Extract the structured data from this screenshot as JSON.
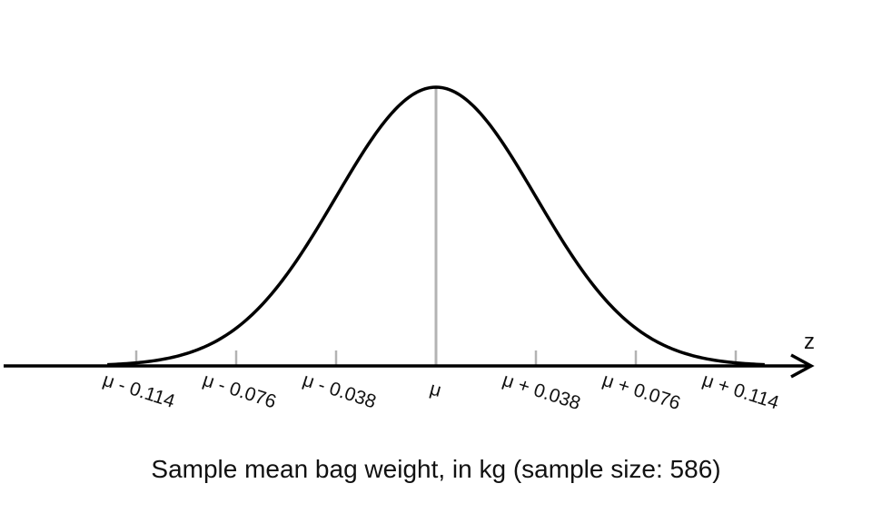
{
  "chart_data": {
    "type": "line",
    "title": "",
    "xlabel": "Sample mean bag weight, in kg (sample size: 586)",
    "ylabel": "",
    "axis_letter": "z",
    "mean_symbol": "μ",
    "standard_error": 0.038,
    "xlim": [
      -0.164,
      0.164
    ],
    "x_ticks": [
      -0.114,
      -0.076,
      -0.038,
      0,
      0.038,
      0.076,
      0.114
    ],
    "tick_labels": [
      "μ - 0.114",
      "μ - 0.076",
      "μ - 0.038",
      "μ",
      "μ + 0.038",
      "μ + 0.076",
      "μ + 0.114"
    ],
    "series": [
      {
        "curve": "normal density",
        "mean": 0,
        "sd": 0.038
      }
    ],
    "center_line_at": 0,
    "grid": false,
    "colors": {
      "curve": "#000000",
      "axis": "#000000",
      "tick": "#b3b3b3",
      "center_line": "#b3b3b3"
    }
  }
}
